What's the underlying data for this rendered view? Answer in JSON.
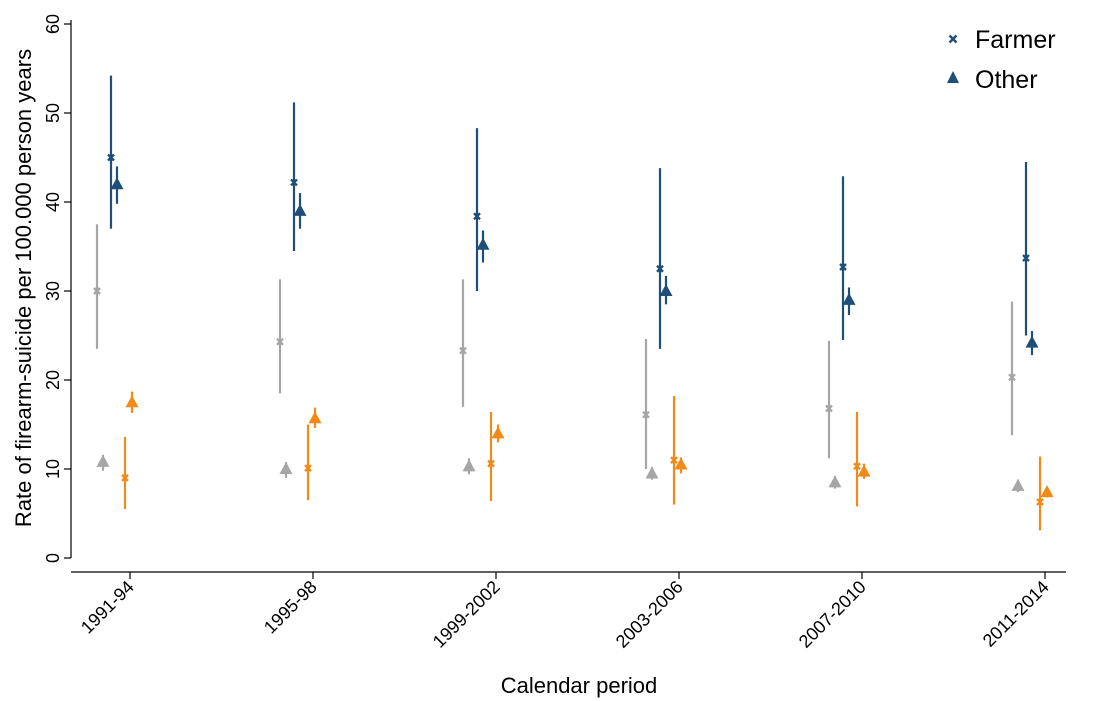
{
  "chart_data": {
    "type": "scatter",
    "title": "",
    "xlabel": "Calendar period",
    "ylabel": "Rate of firearm-suicide per 100.000 person years",
    "ylim": [
      0,
      60
    ],
    "yticks": [
      0,
      10,
      20,
      30,
      40,
      50,
      60
    ],
    "categories": [
      "1991-94",
      "1995-98",
      "1999-2002",
      "2003-2006",
      "2007-2010",
      "2011-2014"
    ],
    "legend": {
      "position": "top-right",
      "entries": [
        {
          "label": "Farmer",
          "marker": "x-mark",
          "color": "#1f4e79"
        },
        {
          "label": "Other",
          "marker": "triangle",
          "color": "#1f4e79"
        }
      ]
    },
    "series": [
      {
        "group": "gray",
        "marker": "x-mark",
        "color": "#a6a6a6",
        "values": [
          30,
          24.3,
          23.3,
          16.1,
          16.8,
          20.3
        ],
        "lower": [
          23.5,
          18.5,
          17,
          10,
          11.2,
          13.8
        ],
        "upper": [
          37.5,
          31.3,
          31.3,
          24.6,
          24.4,
          28.8
        ]
      },
      {
        "group": "gray",
        "marker": "triangle",
        "color": "#a6a6a6",
        "values": [
          10.8,
          10,
          10.3,
          9.5,
          8.5,
          8.1
        ],
        "lower": [
          9.8,
          9,
          9.4,
          8.8,
          7.8,
          7.4
        ],
        "upper": [
          11.6,
          10.8,
          11.2,
          10.2,
          9.2,
          8.8
        ]
      },
      {
        "group": "blue",
        "marker": "x-mark",
        "color": "#1f4e79",
        "values": [
          45,
          42.2,
          38.4,
          32.5,
          32.7,
          33.7
        ],
        "lower": [
          37,
          34.5,
          30,
          23.5,
          24.5,
          25
        ],
        "upper": [
          54.2,
          51.2,
          48.3,
          43.8,
          42.9,
          44.5
        ]
      },
      {
        "group": "blue",
        "marker": "triangle",
        "color": "#1f4e79",
        "values": [
          42,
          39,
          35.2,
          30,
          29,
          24.2
        ],
        "lower": [
          39.8,
          37,
          33.2,
          28.5,
          27.3,
          22.8
        ],
        "upper": [
          44,
          41,
          36.8,
          31.7,
          30.4,
          25.5
        ]
      },
      {
        "group": "orange",
        "marker": "x-mark",
        "color": "#f28a1a",
        "values": [
          9,
          10.1,
          10.6,
          11,
          10.3,
          6.3
        ],
        "lower": [
          5.5,
          6.5,
          6.4,
          6,
          5.8,
          3.1
        ],
        "upper": [
          13.6,
          15,
          16.4,
          18.2,
          16.4,
          11.4
        ]
      },
      {
        "group": "orange",
        "marker": "triangle",
        "color": "#f28a1a",
        "values": [
          17.5,
          15.7,
          14,
          10.5,
          9.7,
          7.4
        ],
        "lower": [
          16.3,
          14.6,
          13,
          9.5,
          8.9,
          6.8
        ],
        "upper": [
          18.7,
          16.9,
          15,
          11.3,
          10.6,
          8
        ]
      }
    ]
  }
}
